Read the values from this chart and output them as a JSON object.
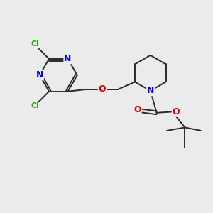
{
  "bg_color": "#ebebeb",
  "atom_colors": {
    "C": "#1a1a1a",
    "N": "#0000ee",
    "O": "#dd0000",
    "Cl": "#00bb00"
  },
  "bond_color": "#2a2a2a",
  "bond_width": 1.4,
  "figsize": [
    3.0,
    3.0
  ],
  "dpi": 100
}
